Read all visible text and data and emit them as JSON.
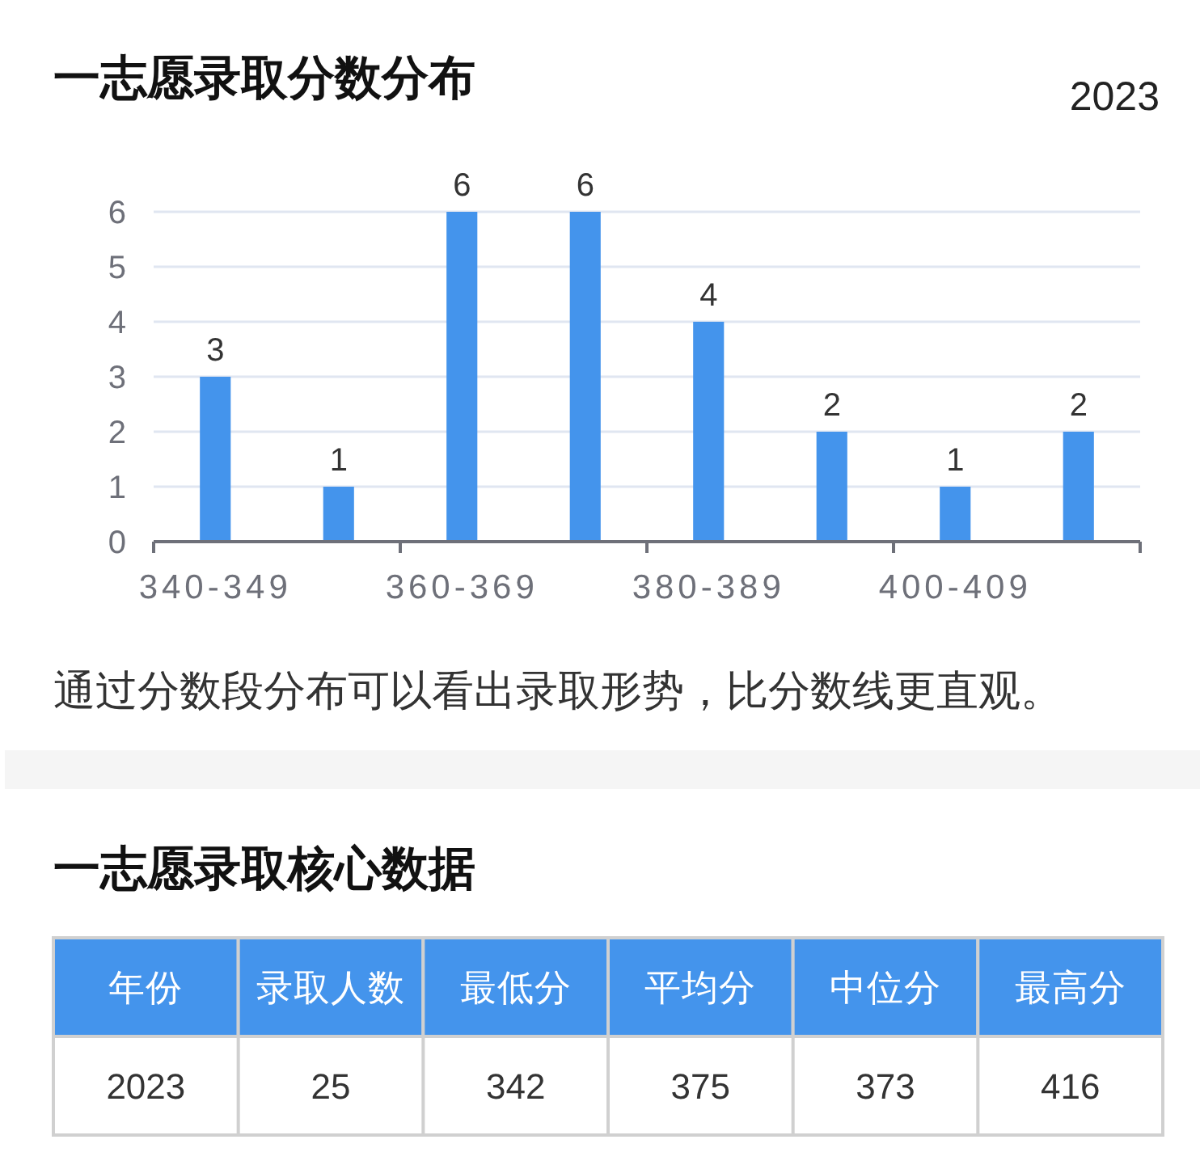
{
  "chart_data": [
    {
      "type": "bar",
      "title": "一志愿录取分数分布",
      "subtitle": "2023",
      "categories": [
        "340-349",
        null,
        "360-369",
        null,
        "380-389",
        null,
        "400-409",
        null
      ],
      "values": [
        3,
        1,
        6,
        6,
        4,
        2,
        1,
        2
      ],
      "color": "#4494ec",
      "ylim": [
        0,
        6
      ],
      "yticks": [
        0,
        1,
        2,
        3,
        4,
        5,
        6
      ],
      "grid": "y",
      "data_labels": true,
      "annotations": [
        "通过分数段分布可以看出录取形势，比分数线更直观。"
      ]
    },
    {
      "type": "other",
      "title": "一志愿录取核心数据",
      "categories": [
        "年份",
        "录取人数",
        "最低分",
        "平均分",
        "中位分",
        "最高分"
      ],
      "values": [
        2023,
        25,
        342,
        375,
        373,
        416
      ],
      "color": "#4494ec",
      "data_labels": true
    }
  ]
}
